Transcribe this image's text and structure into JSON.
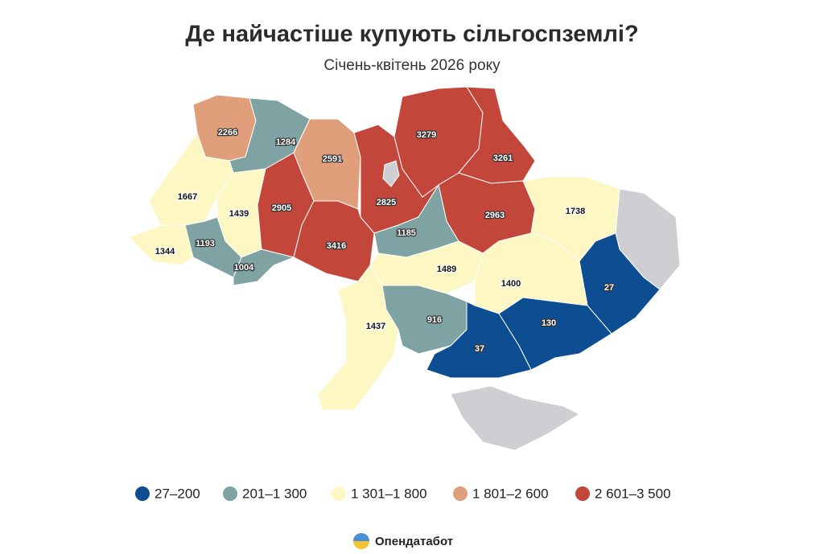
{
  "header": {
    "title": "Де найчастіше купують сільгоспземлі?",
    "subtitle": "Січень-квітень 2026 року"
  },
  "legend": [
    {
      "label": "27–200",
      "min": 27,
      "max": 200,
      "color": "#0d4d92"
    },
    {
      "label": "201–1 300",
      "min": 201,
      "max": 1300,
      "color": "#7fa2a2"
    },
    {
      "label": "1 301–1 800",
      "min": 1301,
      "max": 1800,
      "color": "#fdf7c4"
    },
    {
      "label": "1 801–2 600",
      "min": 1801,
      "max": 2600,
      "color": "#e09e7b"
    },
    {
      "label": "2 601–3 500",
      "min": 2601,
      "max": 3500,
      "color": "#c3463a"
    }
  ],
  "regions": [
    {
      "value": 2266
    },
    {
      "value": 1284
    },
    {
      "value": 2591
    },
    {
      "value": 2825
    },
    {
      "value": 3279
    },
    {
      "value": 3261
    },
    {
      "value": 2963
    },
    {
      "value": 1738
    },
    {
      "value": 27
    },
    {
      "value": 1667
    },
    {
      "value": 1439
    },
    {
      "value": 2905
    },
    {
      "value": 3416
    },
    {
      "value": 1185
    },
    {
      "value": 1344
    },
    {
      "value": 1193
    },
    {
      "value": 1004
    },
    {
      "value": 1489
    },
    {
      "value": 1400
    },
    {
      "value": 1437
    },
    {
      "value": 916
    },
    {
      "value": 130
    },
    {
      "value": 37
    }
  ],
  "footer": {
    "brand": "Опендатабот"
  }
}
